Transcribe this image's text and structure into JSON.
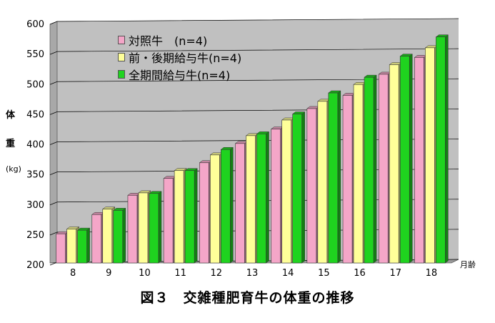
{
  "chart_data": {
    "type": "bar",
    "title": "",
    "xlabel": "",
    "x_unit": "月齢",
    "ylabel": [
      "体",
      "重",
      "(kg)"
    ],
    "categories": [
      "8",
      "9",
      "10",
      "11",
      "12",
      "13",
      "14",
      "15",
      "16",
      "17",
      "18"
    ],
    "ylim": [
      200,
      600
    ],
    "yticks": [
      200,
      250,
      300,
      350,
      400,
      450,
      500,
      550,
      600
    ],
    "grid": true,
    "legend_position": "top-left",
    "series": [
      {
        "name": "対照牛　(n=4)",
        "color": "#f4a6c8",
        "values": [
          252,
          284,
          316,
          344,
          370,
          402,
          426,
          460,
          482,
          517,
          545
        ]
      },
      {
        "name": "前・後期給与牛(n=4)",
        "color": "#ffff99",
        "values": [
          260,
          293,
          320,
          357,
          383,
          415,
          441,
          472,
          500,
          533,
          561
        ]
      },
      {
        "name": "全期間給与牛(n=4)",
        "color": "#1fd31f",
        "values": [
          258,
          291,
          319,
          357,
          392,
          418,
          451,
          486,
          512,
          547,
          579
        ]
      }
    ],
    "plot_background": "#c0c0c0"
  },
  "caption": "図３　交雑種肥育牛の体重の推移"
}
